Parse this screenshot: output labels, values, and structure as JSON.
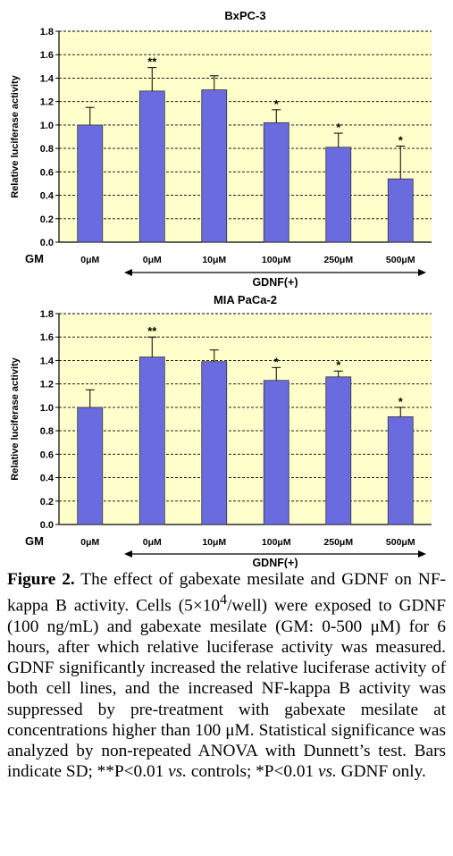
{
  "chart_data": [
    {
      "type": "bar",
      "title": "BxPC-3",
      "ylabel": "Relative luciferase activity",
      "ylim": [
        0,
        1.8
      ],
      "yticks": [
        "0.0",
        "0.2",
        "0.4",
        "0.6",
        "0.8",
        "1.0",
        "1.2",
        "1.4",
        "1.6",
        "1.8"
      ],
      "grid": true,
      "categories": [
        "0μM",
        "0μM",
        "10μM",
        "100μM",
        "250μM",
        "500μM"
      ],
      "values": [
        1.0,
        1.29,
        1.3,
        1.02,
        0.81,
        0.54
      ],
      "errors": [
        0.15,
        0.2,
        0.12,
        0.11,
        0.12,
        0.28
      ],
      "significance": [
        "",
        "**",
        "",
        "*",
        "*",
        "*"
      ],
      "row_label": "GM",
      "group_label": "GDNF(+)",
      "bar_color": "#6b6be0",
      "plot_bg": "#ffffcc"
    },
    {
      "type": "bar",
      "title": "MIA PaCa-2",
      "ylabel": "Relative luciferase activity",
      "ylim": [
        0,
        1.8
      ],
      "yticks": [
        "0.0",
        "0.2",
        "0.4",
        "0.6",
        "0.8",
        "1.0",
        "1.2",
        "1.4",
        "1.6",
        "1.8"
      ],
      "grid": true,
      "categories": [
        "0μM",
        "0μM",
        "10μM",
        "100μM",
        "250μM",
        "500μM"
      ],
      "values": [
        1.0,
        1.43,
        1.39,
        1.23,
        1.26,
        0.92
      ],
      "errors": [
        0.15,
        0.17,
        0.1,
        0.11,
        0.05,
        0.08
      ],
      "significance": [
        "",
        "**",
        "",
        "*",
        "*",
        "*"
      ],
      "row_label": "GM",
      "group_label": "GDNF(+)",
      "bar_color": "#6b6be0",
      "plot_bg": "#ffffcc"
    }
  ],
  "caption": {
    "label": "Figure 2.",
    "t1": " The effect of gabexate mesilate and GDNF on NF-kappa B activity. Cells (5×10",
    "sup": "4",
    "t2": "/well) were exposed to GDNF (100 ng/mL) and gabexate mesilate (GM: 0-500 μM) for 6 hours, after which relative luciferase activity was measured. GDNF significantly increased the relative luciferase activity of both cell lines, and the increased NF-kappa B activity was suppressed by pre-treatment with gabexate mesilate at concentrations higher than 100 μM. Statistical significance was analyzed by non-repeated ANOVA with Dunnett’s test. Bars indicate SD; **P<0.01 ",
    "vs1": "vs.",
    "t3": " controls; *P<0.01 ",
    "vs2": "vs.",
    "t4": " GDNF only."
  }
}
